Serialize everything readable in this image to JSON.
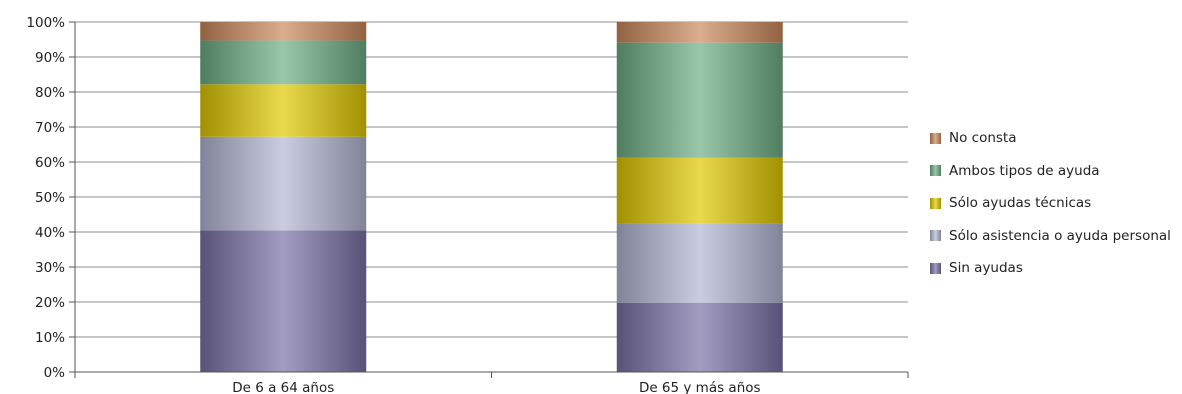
{
  "chart_data": {
    "type": "bar",
    "stacked": true,
    "percent": true,
    "categories": [
      "De 6 a 64 años",
      "De 65 y más años"
    ],
    "series": [
      {
        "name": "Sin ayudas",
        "values": [
          40.5,
          19.8
        ],
        "color": "#7b72a6"
      },
      {
        "name": "Sólo asistencia o ayuda personal",
        "values": [
          26.7,
          22.6
        ],
        "color": "#b3b8d4"
      },
      {
        "name": "Sólo ayudas técnicas",
        "values": [
          15.0,
          18.8
        ],
        "color": "#e0c800"
      },
      {
        "name": "Ambos tipos de ayuda",
        "values": [
          12.5,
          32.9
        ],
        "color": "#6fae86"
      },
      {
        "name": "No consta",
        "values": [
          5.3,
          5.9
        ],
        "color": "#c98a5c"
      }
    ],
    "ylim": [
      0,
      100
    ],
    "yticks": [
      "0%",
      "10%",
      "20%",
      "30%",
      "40%",
      "50%",
      "60%",
      "70%",
      "80%",
      "90%",
      "100%"
    ],
    "grid": true,
    "legend": "right",
    "legend_order": [
      "No consta",
      "Ambos tipos de ayuda",
      "Sólo ayudas técnicas",
      "Sólo asistencia o ayuda personal",
      "Sin ayudas"
    ]
  }
}
